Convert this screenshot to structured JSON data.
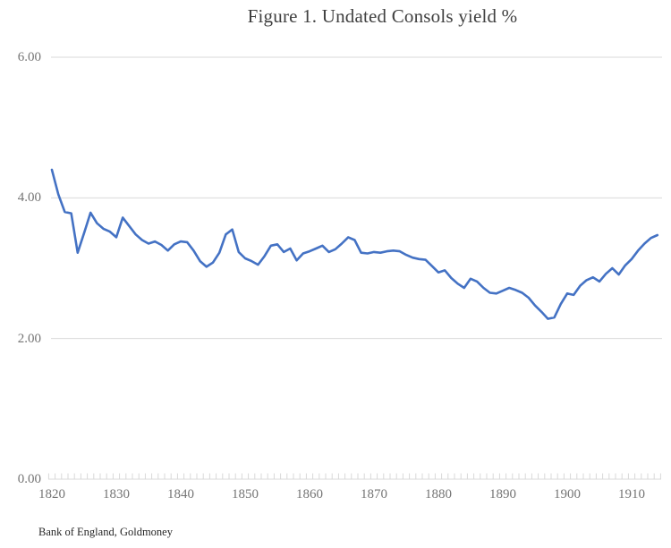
{
  "title": "Figure 1. Undated Consols yield %",
  "source": "Bank of England, Goldmoney",
  "colors": {
    "line": "#4472C4",
    "gridline": "#D9D9D9",
    "tick": "#D9D9D9",
    "axis_label": "#757575",
    "title": "#404040",
    "source": "#262626",
    "background": "#FFFFFF"
  },
  "y_axis": {
    "values": [
      0,
      2,
      4,
      6
    ],
    "tick_labels": [
      "0.00",
      "2.00",
      "4.00",
      "6.00"
    ]
  },
  "x_axis": {
    "labeled_years": [
      1820,
      1830,
      1840,
      1850,
      1860,
      1870,
      1880,
      1890,
      1900,
      1910
    ],
    "tick_labels": [
      "1820",
      "1830",
      "1840",
      "1850",
      "1860",
      "1870",
      "1880",
      "1890",
      "1900",
      "1910"
    ],
    "minor_tick_every_years": 1
  },
  "chart_data": {
    "type": "line",
    "title": "Figure 1. Undated Consols yield %",
    "xlabel": "",
    "ylabel": "",
    "ylim": [
      0,
      6
    ],
    "xlim": [
      1820,
      1914
    ],
    "grid": "horizontal",
    "legend": "none",
    "x": [
      1820,
      1821,
      1822,
      1823,
      1824,
      1825,
      1826,
      1827,
      1828,
      1829,
      1830,
      1831,
      1832,
      1833,
      1834,
      1835,
      1836,
      1837,
      1838,
      1839,
      1840,
      1841,
      1842,
      1843,
      1844,
      1845,
      1846,
      1847,
      1848,
      1849,
      1850,
      1851,
      1852,
      1853,
      1854,
      1855,
      1856,
      1857,
      1858,
      1859,
      1860,
      1861,
      1862,
      1863,
      1864,
      1865,
      1866,
      1867,
      1868,
      1869,
      1870,
      1871,
      1872,
      1873,
      1874,
      1875,
      1876,
      1877,
      1878,
      1879,
      1880,
      1881,
      1882,
      1883,
      1884,
      1885,
      1886,
      1887,
      1888,
      1889,
      1890,
      1891,
      1892,
      1893,
      1894,
      1895,
      1896,
      1897,
      1898,
      1899,
      1900,
      1901,
      1902,
      1903,
      1904,
      1905,
      1906,
      1907,
      1908,
      1909,
      1910,
      1911,
      1912,
      1913,
      1914
    ],
    "series": [
      {
        "name": "Undated Consols yield %",
        "values": [
          4.4,
          4.05,
          3.8,
          3.78,
          3.22,
          3.5,
          3.79,
          3.64,
          3.56,
          3.52,
          3.44,
          3.72,
          3.6,
          3.48,
          3.4,
          3.35,
          3.38,
          3.33,
          3.25,
          3.34,
          3.38,
          3.37,
          3.25,
          3.1,
          3.02,
          3.08,
          3.22,
          3.48,
          3.55,
          3.23,
          3.14,
          3.1,
          3.05,
          3.17,
          3.32,
          3.34,
          3.23,
          3.28,
          3.11,
          3.21,
          3.24,
          3.28,
          3.32,
          3.23,
          3.27,
          3.35,
          3.44,
          3.4,
          3.22,
          3.21,
          3.23,
          3.22,
          3.24,
          3.25,
          3.24,
          3.19,
          3.15,
          3.13,
          3.12,
          3.03,
          2.94,
          2.97,
          2.86,
          2.78,
          2.72,
          2.85,
          2.81,
          2.72,
          2.65,
          2.64,
          2.68,
          2.72,
          2.69,
          2.65,
          2.58,
          2.47,
          2.38,
          2.28,
          2.3,
          2.49,
          2.64,
          2.62,
          2.75,
          2.83,
          2.87,
          2.81,
          2.92,
          3.0,
          2.91,
          3.04,
          3.13,
          3.25,
          3.35,
          3.43,
          3.47
        ]
      }
    ]
  }
}
